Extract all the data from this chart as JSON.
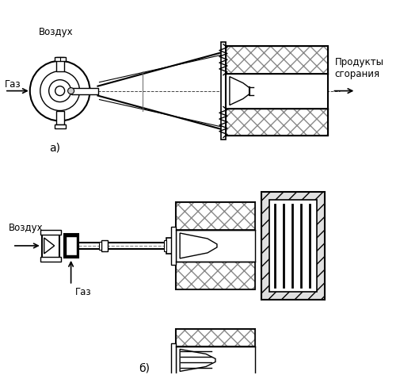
{
  "bg_color": "#ffffff",
  "lc": "#000000",
  "label_vozduh_a": "Воздух",
  "label_gaz_a": "Газ",
  "label_produkty": "Продукты\nсгорания",
  "label_a": "а)",
  "label_vozduh_b": "Воздух",
  "label_gaz_b": "Газ",
  "label_b": "б)"
}
